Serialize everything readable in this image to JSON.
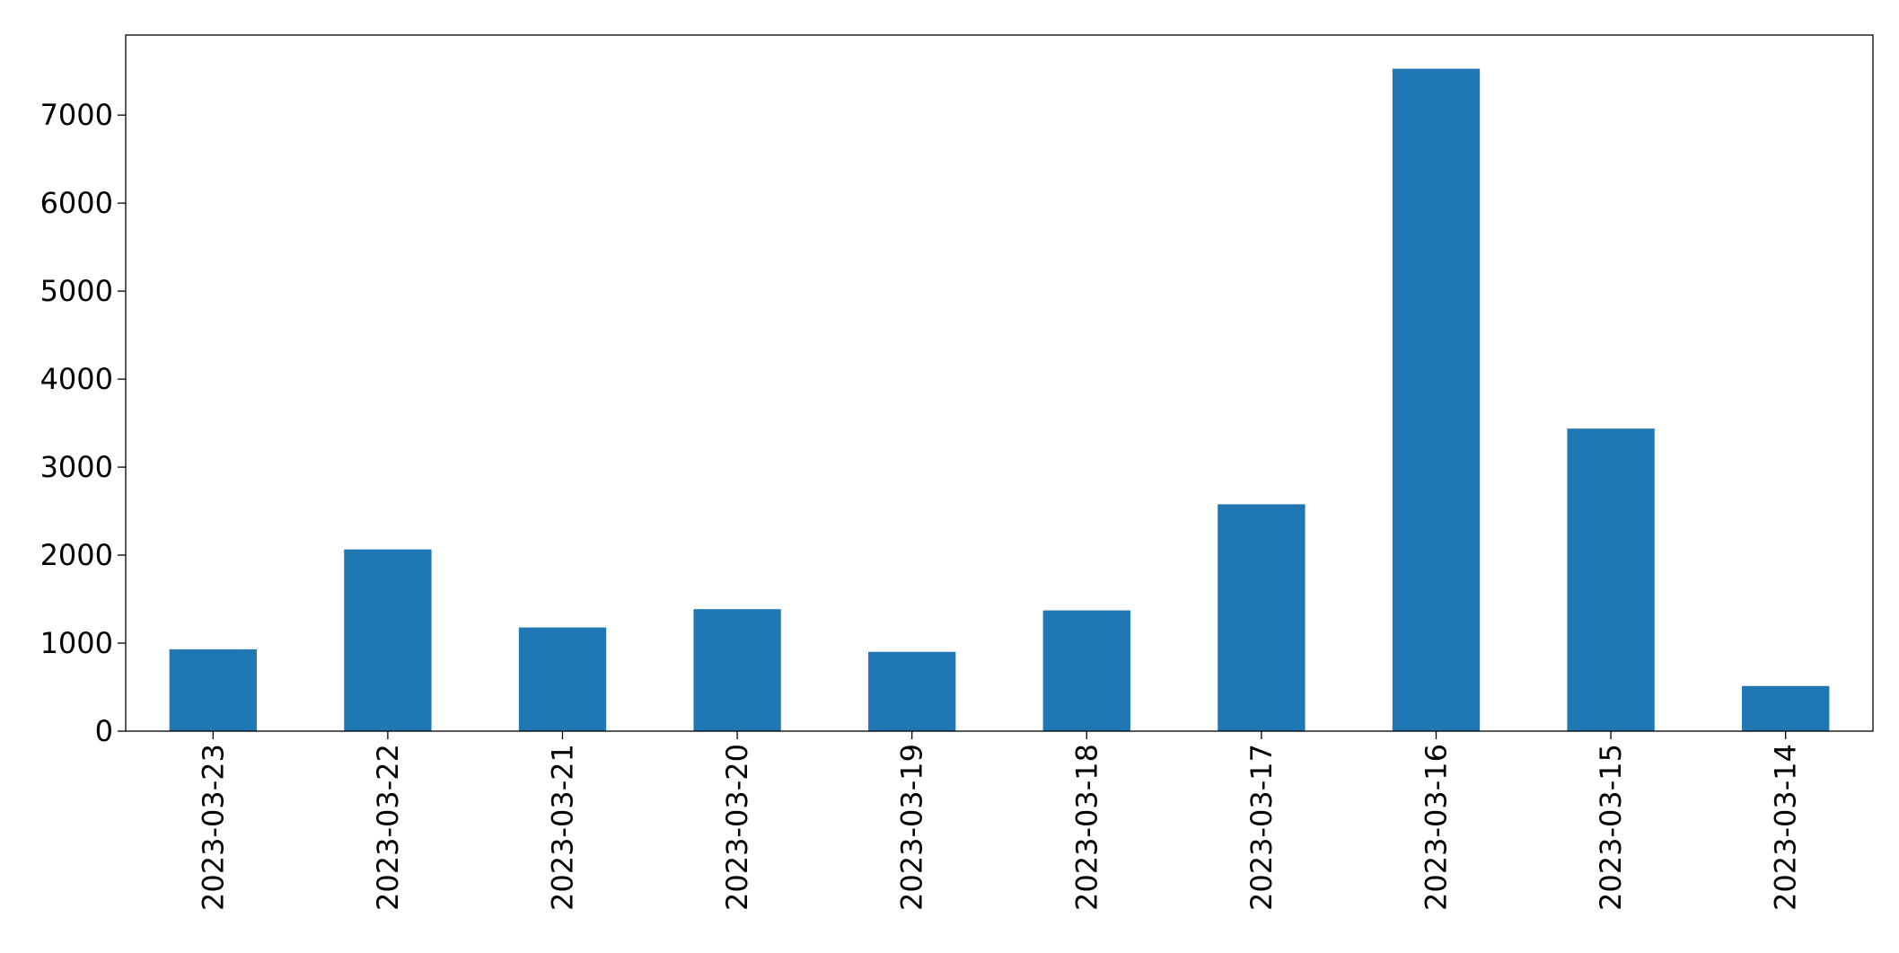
{
  "chart_data": {
    "type": "bar",
    "categories": [
      "2023-03-23",
      "2023-03-22",
      "2023-03-21",
      "2023-03-20",
      "2023-03-19",
      "2023-03-18",
      "2023-03-17",
      "2023-03-16",
      "2023-03-15",
      "2023-03-14"
    ],
    "values": [
      930,
      2065,
      1178,
      1386,
      901,
      1372,
      2578,
      7527,
      3438,
      513
    ],
    "color": "#1f77b4",
    "ylim": [
      0,
      7910
    ],
    "yticks": [
      0,
      1000,
      2000,
      3000,
      4000,
      5000,
      6000,
      7000
    ],
    "grid": false
  }
}
